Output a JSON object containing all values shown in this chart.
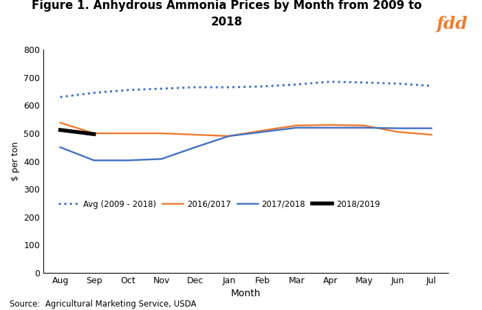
{
  "title": "Figure 1. Anhydrous Ammonia Prices by Month from 2009 to\n2018",
  "xlabel": "Month",
  "ylabel": "$ per ton",
  "source": "Source:  Agricultural Marketing Service, USDA",
  "months": [
    "Aug",
    "Sep",
    "Oct",
    "Nov",
    "Dec",
    "Jan",
    "Feb",
    "Mar",
    "Apr",
    "May",
    "Jun",
    "Jul"
  ],
  "avg_2009_2018": [
    630,
    645,
    655,
    660,
    665,
    665,
    668,
    675,
    685,
    682,
    678,
    670
  ],
  "series_2016_2017": [
    538,
    500,
    500,
    500,
    495,
    490,
    510,
    528,
    530,
    528,
    505,
    495
  ],
  "series_2017_2018": [
    450,
    403,
    403,
    408,
    450,
    490,
    505,
    520,
    520,
    520,
    518,
    518
  ],
  "series_2018_2019": [
    512,
    497,
    null,
    null,
    null,
    null,
    null,
    null,
    null,
    null,
    null,
    null
  ],
  "avg_color": "#4472C4",
  "color_2016": "#ED7D31",
  "color_2017": "#4472C4",
  "color_2018": "#000000",
  "ylim": [
    0,
    800
  ],
  "yticks": [
    0,
    100,
    200,
    300,
    400,
    500,
    600,
    700,
    800
  ],
  "logo_bg": "#2E3368",
  "logo_text": "#ED7D31",
  "logo_label": "fdd"
}
